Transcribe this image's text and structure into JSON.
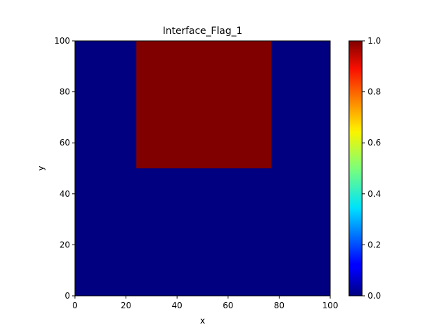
{
  "chart_data": {
    "type": "heatmap",
    "title": "Interface_Flag_1",
    "xlabel": "x",
    "ylabel": "y",
    "xlim": [
      0,
      100
    ],
    "ylim": [
      0,
      100
    ],
    "x_ticks": [
      0,
      20,
      40,
      60,
      80,
      100
    ],
    "y_ticks": [
      0,
      20,
      40,
      60,
      80,
      100
    ],
    "background_value": 0.0,
    "regions": [
      {
        "x_range": [
          24,
          77
        ],
        "y_range": [
          50,
          100
        ],
        "value": 1.0
      }
    ],
    "colorbar": {
      "colormap": "jet",
      "range": [
        0.0,
        1.0
      ],
      "ticks": [
        "0.0",
        "0.2",
        "0.4",
        "0.6",
        "0.8",
        "1.0"
      ],
      "low_color": "#000080",
      "high_color": "#800000"
    }
  }
}
